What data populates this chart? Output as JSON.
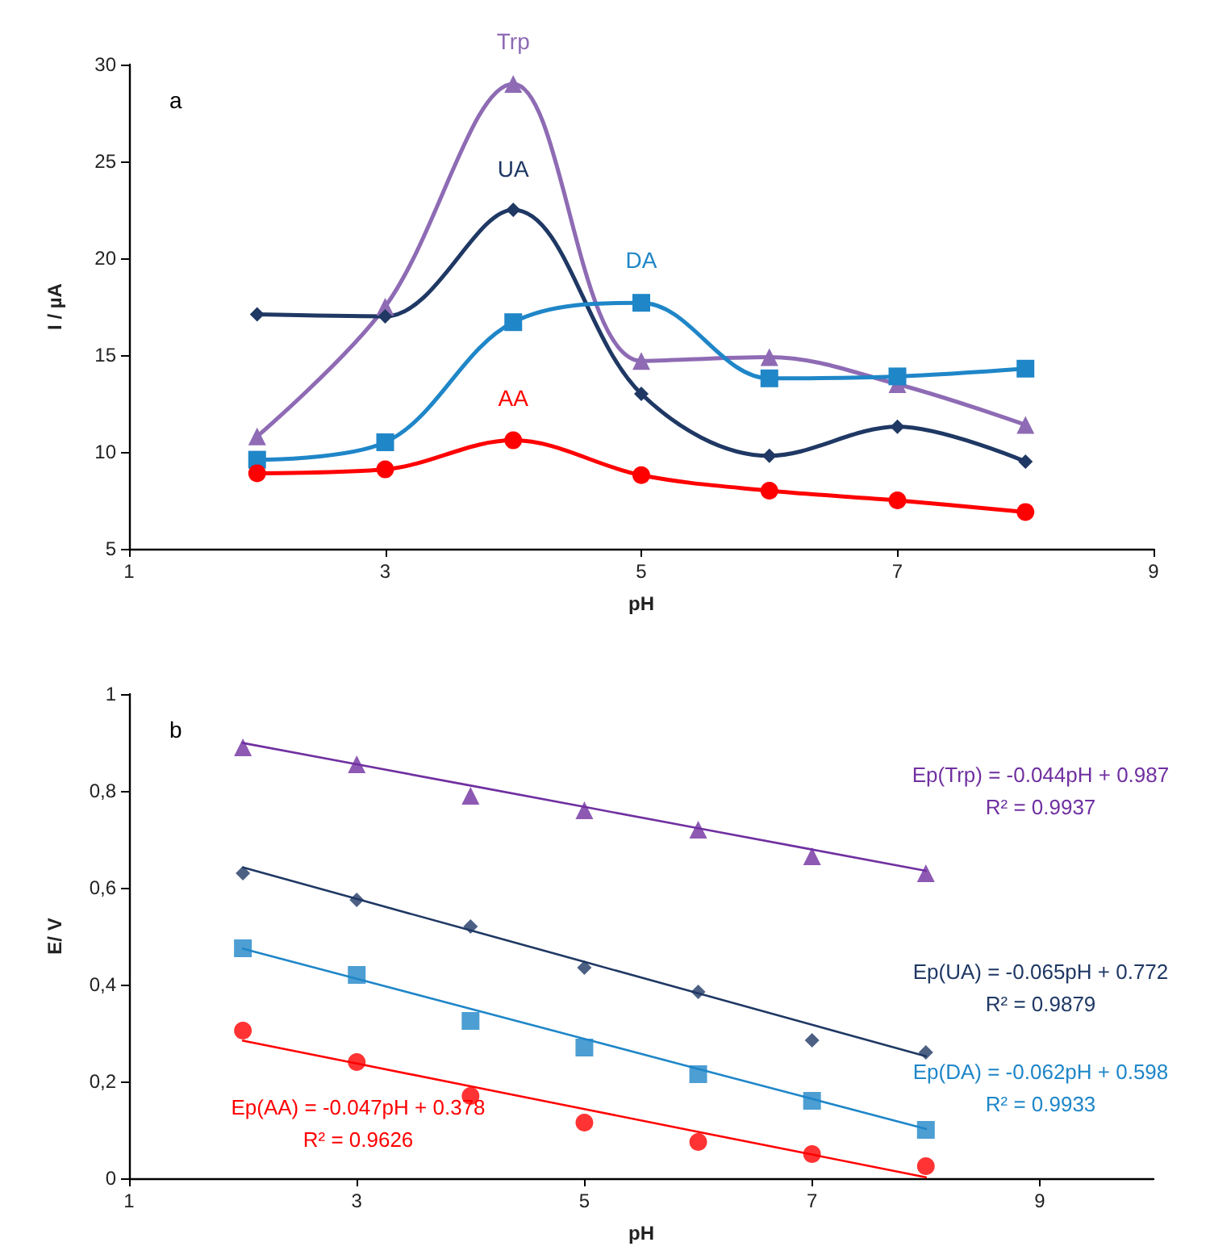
{
  "chart_data": [
    {
      "type": "line",
      "xlabel": "pH",
      "ylabel": "I / µA",
      "xlim": [
        1,
        9
      ],
      "xticks": [
        1,
        3,
        5,
        7,
        9
      ],
      "ylim": [
        5,
        30
      ],
      "yticks": [
        5,
        10,
        15,
        20,
        25,
        30
      ],
      "grid": false,
      "legend": false,
      "line_style": "solid",
      "annotations": [
        "a"
      ],
      "x": [
        2,
        3,
        4,
        5,
        6,
        7,
        8
      ],
      "series": [
        {
          "name": "Trp",
          "color": "#8e6bb4",
          "marker": "triangle",
          "values": [
            10.8,
            17.5,
            29,
            14.7,
            14.9,
            13.5,
            11.4
          ]
        },
        {
          "name": "UA",
          "color": "#1f3864",
          "marker": "diamond",
          "values": [
            17.1,
            17.0,
            22.5,
            13.0,
            9.8,
            11.3,
            9.5
          ]
        },
        {
          "name": "DA",
          "color": "#1f86c8",
          "marker": "square",
          "values": [
            9.6,
            10.5,
            16.7,
            17.7,
            13.8,
            13.9,
            14.3
          ]
        },
        {
          "name": "AA",
          "color": "#ff0000",
          "marker": "circle",
          "values": [
            8.9,
            9.1,
            10.6,
            8.8,
            8.0,
            7.5,
            6.9
          ]
        }
      ]
    },
    {
      "type": "scatter",
      "xlabel": "pH",
      "ylabel": "E/ V",
      "xlim": [
        1,
        10
      ],
      "xticks": [
        1,
        3,
        5,
        7,
        9
      ],
      "ylim": [
        0,
        1
      ],
      "yticks": [
        0,
        {
          "value": 0.2,
          "label": "0,2"
        },
        {
          "value": 0.4,
          "label": "0,4"
        },
        {
          "value": 0.6,
          "label": "0,6"
        },
        {
          "value": 0.8,
          "label": "0,8"
        },
        1
      ],
      "grid": false,
      "legend": false,
      "annotations": [
        "b",
        "Ep(Trp) = -0.044pH + 0.987\nR² = 0.9937",
        "Ep(UA) = -0.065pH + 0.772\nR² = 0.9879",
        "Ep(DA) = -0.062pH + 0.598\nR² = 0.9933",
        "Ep(AA) = -0.047pH + 0.378\nR² = 0.9626"
      ],
      "x": [
        2,
        3,
        4,
        5,
        6,
        7,
        8
      ],
      "series": [
        {
          "color": "#7030a0",
          "marker": "triangle",
          "values": [
            0.89,
            0.855,
            0.79,
            0.76,
            0.72,
            0.665,
            0.63
          ]
        },
        {
          "color": "#1f3864",
          "marker": "diamond",
          "values": [
            0.63,
            0.575,
            0.52,
            0.435,
            0.385,
            0.285,
            0.26
          ]
        },
        {
          "color": "#1f86c8",
          "marker": "square",
          "values": [
            0.475,
            0.42,
            0.325,
            0.27,
            0.215,
            0.16,
            0.1
          ]
        },
        {
          "color": "#ff0000",
          "marker": "circle",
          "values": [
            0.305,
            0.24,
            0.17,
            0.115,
            0.075,
            0.05,
            0.025
          ]
        },
        {
          "type": "line",
          "color": "#7030a0",
          "marker": "none",
          "values": [
            0.899,
            0.855,
            0.811,
            0.767,
            0.723,
            0.679,
            0.635
          ]
        },
        {
          "type": "line",
          "color": "#1f3864",
          "marker": "none",
          "values": [
            0.642,
            0.577,
            0.512,
            0.447,
            0.382,
            0.317,
            0.252
          ]
        },
        {
          "type": "line",
          "color": "#1f86c8",
          "marker": "none",
          "values": [
            0.474,
            0.412,
            0.35,
            0.288,
            0.226,
            0.164,
            0.102
          ]
        },
        {
          "type": "line",
          "color": "#ff0000",
          "marker": "none",
          "values": [
            0.284,
            0.237,
            0.19,
            0.143,
            0.096,
            0.049,
            0.002
          ]
        }
      ]
    }
  ]
}
